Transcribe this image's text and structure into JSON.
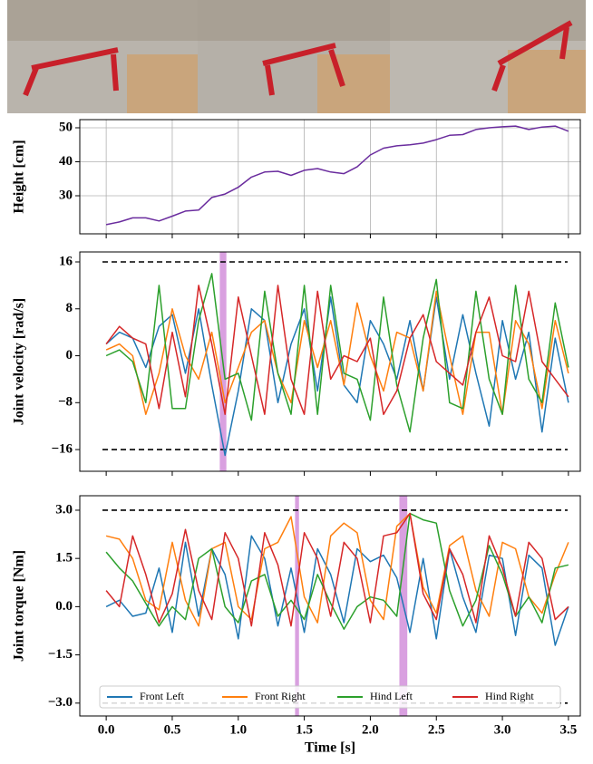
{
  "chart_data": [
    {
      "type": "line",
      "ylabel": "Height [cm]",
      "x": [
        0,
        0.1,
        0.2,
        0.3,
        0.4,
        0.5,
        0.6,
        0.7,
        0.8,
        0.9,
        1.0,
        1.1,
        1.2,
        1.3,
        1.4,
        1.5,
        1.6,
        1.7,
        1.8,
        1.9,
        2.0,
        2.1,
        2.2,
        2.3,
        2.4,
        2.5,
        2.6,
        2.7,
        2.8,
        2.9,
        3.0,
        3.1,
        3.2,
        3.3,
        3.4,
        3.5
      ],
      "series": [
        {
          "color": "#6a2c9e",
          "values": [
            21.5,
            22.3,
            23.5,
            23.5,
            22.6,
            24,
            25.5,
            25.8,
            29.5,
            30.5,
            32.5,
            35.5,
            37,
            37.2,
            36,
            37.5,
            38,
            37,
            36.5,
            38.5,
            42,
            44,
            44.7,
            45,
            45.5,
            46.5,
            47.8,
            48,
            49.5,
            50,
            50.3,
            50.5,
            49.5,
            50.2,
            50.5,
            49
          ]
        }
      ],
      "xlim": [
        -0.2,
        3.59
      ],
      "xticks": [
        0,
        0.5,
        1,
        1.5,
        2,
        2.5,
        3,
        3.5
      ],
      "show_xtick_labels": false,
      "ylim": [
        18.8,
        52.4
      ],
      "yticks": [
        30,
        40,
        50
      ],
      "grid": true
    },
    {
      "type": "line",
      "ylabel": "Joint velocity [rad/s]",
      "x": [
        0,
        0.1,
        0.2,
        0.3,
        0.4,
        0.5,
        0.6,
        0.7,
        0.8,
        0.9,
        1.0,
        1.1,
        1.2,
        1.3,
        1.4,
        1.5,
        1.6,
        1.7,
        1.8,
        1.9,
        2.0,
        2.1,
        2.2,
        2.3,
        2.4,
        2.5,
        2.6,
        2.7,
        2.8,
        2.9,
        3.0,
        3.1,
        3.2,
        3.3,
        3.4,
        3.5
      ],
      "series": [
        {
          "color": "#1f77b4",
          "values": [
            2,
            4,
            3,
            -2,
            5,
            7,
            -3,
            8,
            -5,
            -17,
            -6,
            8,
            6,
            -8,
            2,
            8,
            -6,
            10,
            -5,
            -8,
            6,
            2,
            -4,
            6,
            -6,
            10,
            -4,
            7,
            -3,
            -12,
            6,
            -4,
            4,
            -13,
            3,
            -8
          ]
        },
        {
          "color": "#ff7f0e",
          "values": [
            1,
            2,
            0,
            -10,
            -3,
            8,
            0,
            -4,
            4,
            -8,
            -2,
            4,
            6,
            -3,
            -8,
            6,
            -2,
            6,
            -5,
            9,
            0,
            -6,
            4,
            3,
            -6,
            11,
            0,
            -10,
            4,
            4,
            -10,
            6,
            2,
            -9,
            6,
            -3
          ]
        },
        {
          "color": "#2ca02c",
          "values": [
            0,
            1,
            -1,
            -8,
            12,
            -9,
            -9,
            6,
            14,
            -4,
            -3,
            -11,
            11,
            -3,
            -10,
            12,
            -10,
            12,
            -3,
            -4,
            -11,
            10,
            -5,
            -13,
            3,
            13,
            -8,
            -9,
            11,
            -4,
            -10,
            12,
            -4,
            -8,
            9,
            -2
          ]
        },
        {
          "color": "#d62728",
          "values": [
            2,
            5,
            3,
            2,
            -9,
            4,
            -7,
            12,
            2,
            -10,
            10,
            0,
            -10,
            12,
            -4,
            -10,
            11,
            -4,
            0,
            -1,
            3,
            -10,
            -6,
            3,
            7,
            -1,
            -3,
            -5,
            4,
            10,
            0,
            -1,
            11,
            -1,
            -4,
            -7
          ]
        }
      ],
      "limits": [
        -16,
        16
      ],
      "highlight_color": "#d9a0e0",
      "highlight_spans": [
        [
          0.86,
          0.91
        ]
      ],
      "xlim": [
        -0.2,
        3.59
      ],
      "xticks": [
        0,
        0.5,
        1,
        1.5,
        2,
        2.5,
        3,
        3.5
      ],
      "show_xtick_labels": false,
      "ylim": [
        -19.7,
        17.7
      ],
      "yticks": [
        {
          "value": -16,
          "label": "−16"
        },
        {
          "value": -8,
          "label": "−8"
        },
        0,
        8,
        16
      ],
      "grid": false
    },
    {
      "type": "line",
      "ylabel": "Joint torque [Nm]",
      "xlabel": "Time [s]",
      "x": [
        0,
        0.1,
        0.2,
        0.3,
        0.4,
        0.5,
        0.6,
        0.7,
        0.8,
        0.9,
        1.0,
        1.1,
        1.2,
        1.3,
        1.4,
        1.5,
        1.6,
        1.7,
        1.8,
        1.9,
        2.0,
        2.1,
        2.2,
        2.3,
        2.4,
        2.5,
        2.6,
        2.7,
        2.8,
        2.9,
        3.0,
        3.1,
        3.2,
        3.3,
        3.4,
        3.5
      ],
      "series": [
        {
          "name": "Front Left",
          "color": "#1f77b4",
          "values": [
            0,
            0.2,
            -0.3,
            -0.2,
            1.2,
            -0.8,
            2.0,
            -0.3,
            1.8,
            1.0,
            -1.0,
            2.2,
            1.5,
            -0.6,
            1.2,
            -0.8,
            1.8,
            1.0,
            -0.5,
            1.8,
            1.4,
            1.6,
            0.9,
            -0.8,
            1.5,
            -1.0,
            1.8,
            0.3,
            -0.8,
            1.6,
            1.5,
            -0.9,
            1.6,
            1.2,
            -1.2,
            0
          ]
        },
        {
          "name": "Front Right",
          "color": "#ff7f0e",
          "values": [
            2.2,
            2.1,
            1.5,
            0.2,
            -0.1,
            2.0,
            0.2,
            -0.6,
            1.8,
            2.0,
            0.0,
            -0.4,
            1.8,
            2.0,
            2.8,
            0.3,
            -0.5,
            2.2,
            2.6,
            2.3,
            0.2,
            -0.4,
            2.5,
            2.9,
            0.6,
            -0.2,
            1.9,
            2.2,
            0.5,
            -0.3,
            2.0,
            1.8,
            0.3,
            -0.2,
            1.0,
            2.0
          ]
        },
        {
          "name": "Hind Left",
          "color": "#2ca02c",
          "values": [
            1.7,
            1.2,
            0.8,
            0.1,
            -0.6,
            0.0,
            -0.4,
            1.5,
            1.8,
            0.0,
            -0.5,
            0.8,
            1.0,
            -0.3,
            0.2,
            -0.4,
            1.0,
            0.1,
            -0.7,
            0.0,
            0.3,
            0.2,
            -0.3,
            2.9,
            2.7,
            2.6,
            0.5,
            -0.6,
            0.2,
            1.9,
            1.0,
            -0.3,
            0.3,
            -0.5,
            1.2,
            1.3
          ]
        },
        {
          "name": "Hind Right",
          "color": "#d62728",
          "values": [
            0.5,
            0.0,
            2.2,
            1.0,
            -0.5,
            0.4,
            2.4,
            0.5,
            -0.4,
            2.3,
            1.5,
            -0.6,
            2.3,
            1.3,
            -0.6,
            2.3,
            1.5,
            -0.3,
            2.0,
            1.5,
            -0.5,
            2.2,
            2.3,
            2.9,
            0.4,
            -0.4,
            1.8,
            1.0,
            -0.5,
            2.2,
            1.2,
            -0.3,
            2.0,
            1.5,
            -0.4,
            0.0
          ]
        }
      ],
      "limits": [
        -3,
        3
      ],
      "highlight_color": "#d9a0e0",
      "highlight_spans": [
        [
          1.43,
          1.46
        ],
        [
          2.22,
          2.28
        ]
      ],
      "legend": "lower center",
      "xlim": [
        -0.2,
        3.59
      ],
      "xticks": [
        {
          "value": 0,
          "label": "0.0"
        },
        0.5,
        {
          "value": 1,
          "label": "1.0"
        },
        1.5,
        {
          "value": 2,
          "label": "2.0"
        },
        2.5,
        {
          "value": 3,
          "label": "3.0"
        },
        3.5
      ],
      "show_xtick_labels": true,
      "ylim": [
        -3.4,
        3.45
      ],
      "yticks": [
        {
          "value": -3,
          "label": "−3.0"
        },
        {
          "value": -1.5,
          "label": "−1.5"
        },
        {
          "value": 0,
          "label": "0.0"
        },
        1.5,
        {
          "value": 3,
          "label": "3.0"
        }
      ],
      "grid": false
    }
  ]
}
